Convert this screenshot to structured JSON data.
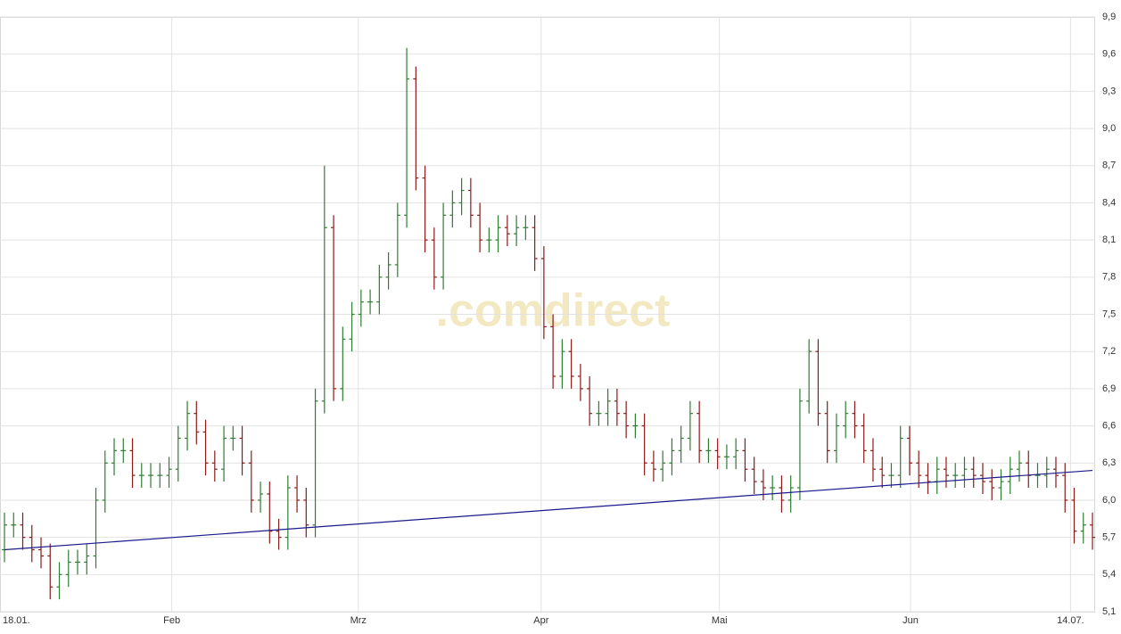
{
  "chart_data": {
    "type": "ohlc",
    "watermark": ".comdirect",
    "open": [
      5.6,
      5.8,
      5.8,
      5.7,
      5.6,
      5.55,
      5.3,
      5.4,
      5.5,
      5.5,
      5.55,
      6.0,
      6.3,
      6.4,
      6.4,
      6.2,
      6.2,
      6.2,
      6.2,
      6.25,
      6.5,
      6.7,
      6.55,
      6.3,
      6.25,
      6.5,
      6.5,
      6.3,
      6.0,
      6.05,
      5.75,
      5.7,
      6.1,
      6.0,
      5.8,
      6.8,
      8.2,
      6.9,
      7.3,
      7.5,
      7.6,
      7.6,
      7.8,
      7.9,
      8.3,
      9.4,
      8.6,
      8.1,
      7.8,
      8.3,
      8.4,
      8.5,
      8.3,
      8.1,
      8.1,
      8.2,
      8.15,
      8.2,
      8.2,
      7.95,
      7.4,
      7.0,
      7.2,
      7.0,
      6.9,
      6.7,
      6.7,
      6.8,
      6.7,
      6.6,
      6.6,
      6.3,
      6.25,
      6.3,
      6.4,
      6.5,
      6.7,
      6.4,
      6.4,
      6.35,
      6.35,
      6.4,
      6.25,
      6.15,
      6.1,
      6.1,
      6.0,
      6.1,
      6.8,
      7.2,
      6.7,
      6.4,
      6.6,
      6.7,
      6.6,
      6.4,
      6.25,
      6.2,
      6.2,
      6.5,
      6.3,
      6.2,
      6.15,
      6.25,
      6.2,
      6.2,
      6.25,
      6.2,
      6.15,
      6.1,
      6.15,
      6.25,
      6.3,
      6.2,
      6.2,
      6.25,
      6.2,
      6.0,
      5.75,
      5.8
    ],
    "high": [
      5.9,
      5.9,
      5.9,
      5.8,
      5.7,
      5.65,
      5.5,
      5.6,
      5.6,
      5.65,
      6.1,
      6.4,
      6.5,
      6.5,
      6.5,
      6.3,
      6.3,
      6.3,
      6.35,
      6.6,
      6.8,
      6.8,
      6.65,
      6.4,
      6.6,
      6.6,
      6.6,
      6.4,
      6.15,
      6.15,
      5.85,
      6.2,
      6.2,
      6.1,
      6.9,
      8.7,
      8.3,
      7.4,
      7.6,
      7.7,
      7.7,
      7.9,
      8.0,
      8.4,
      9.65,
      9.5,
      8.7,
      8.2,
      8.4,
      8.5,
      8.6,
      8.6,
      8.4,
      8.2,
      8.3,
      8.3,
      8.3,
      8.3,
      8.3,
      8.05,
      7.5,
      7.3,
      7.3,
      7.1,
      7.0,
      6.8,
      6.9,
      6.9,
      6.8,
      6.7,
      6.7,
      6.4,
      6.4,
      6.5,
      6.6,
      6.8,
      6.8,
      6.5,
      6.5,
      6.45,
      6.5,
      6.5,
      6.35,
      6.25,
      6.2,
      6.2,
      6.2,
      6.9,
      7.3,
      7.3,
      6.8,
      6.7,
      6.8,
      6.8,
      6.7,
      6.5,
      6.35,
      6.3,
      6.6,
      6.6,
      6.4,
      6.3,
      6.35,
      6.35,
      6.3,
      6.35,
      6.35,
      6.3,
      6.25,
      6.25,
      6.35,
      6.4,
      6.4,
      6.3,
      6.35,
      6.35,
      6.3,
      6.1,
      5.9,
      5.9
    ],
    "low": [
      5.5,
      5.7,
      5.6,
      5.5,
      5.45,
      5.2,
      5.2,
      5.3,
      5.4,
      5.4,
      5.45,
      5.9,
      6.2,
      6.3,
      6.1,
      6.1,
      6.1,
      6.1,
      6.1,
      6.15,
      6.4,
      6.45,
      6.2,
      6.15,
      6.15,
      6.4,
      6.2,
      5.9,
      5.9,
      5.65,
      5.6,
      5.6,
      5.9,
      5.7,
      5.7,
      6.7,
      6.8,
      6.8,
      7.2,
      7.4,
      7.5,
      7.5,
      7.7,
      7.8,
      8.2,
      8.5,
      8.0,
      7.7,
      7.7,
      8.2,
      8.3,
      8.2,
      8.0,
      8.0,
      8.0,
      8.05,
      8.05,
      8.1,
      7.85,
      7.3,
      6.9,
      6.9,
      6.9,
      6.8,
      6.6,
      6.6,
      6.6,
      6.6,
      6.5,
      6.5,
      6.2,
      6.15,
      6.15,
      6.2,
      6.3,
      6.4,
      6.3,
      6.3,
      6.25,
      6.25,
      6.25,
      6.15,
      6.05,
      6.0,
      6.0,
      5.9,
      5.9,
      6.0,
      6.7,
      6.6,
      6.3,
      6.3,
      6.5,
      6.5,
      6.3,
      6.15,
      6.1,
      6.1,
      6.1,
      6.2,
      6.1,
      6.05,
      6.05,
      6.1,
      6.1,
      6.1,
      6.1,
      6.05,
      6.0,
      6.0,
      6.05,
      6.15,
      6.1,
      6.1,
      6.1,
      6.1,
      5.9,
      5.65,
      5.65,
      5.6
    ],
    "close": [
      5.8,
      5.8,
      5.7,
      5.6,
      5.55,
      5.3,
      5.4,
      5.5,
      5.5,
      5.55,
      6.0,
      6.3,
      6.4,
      6.4,
      6.2,
      6.2,
      6.2,
      6.2,
      6.25,
      6.5,
      6.7,
      6.55,
      6.3,
      6.25,
      6.5,
      6.5,
      6.3,
      6.0,
      6.05,
      5.75,
      5.7,
      6.1,
      6.0,
      5.8,
      6.8,
      8.2,
      6.9,
      7.3,
      7.5,
      7.6,
      7.6,
      7.8,
      7.9,
      8.3,
      9.4,
      8.6,
      8.1,
      7.8,
      8.3,
      8.4,
      8.5,
      8.3,
      8.1,
      8.1,
      8.2,
      8.15,
      8.2,
      8.2,
      7.95,
      7.4,
      7.0,
      7.2,
      7.0,
      6.9,
      6.7,
      6.7,
      6.8,
      6.7,
      6.6,
      6.6,
      6.3,
      6.25,
      6.3,
      6.4,
      6.5,
      6.7,
      6.4,
      6.4,
      6.35,
      6.35,
      6.4,
      6.25,
      6.15,
      6.1,
      6.1,
      6.0,
      6.1,
      6.8,
      7.2,
      6.7,
      6.4,
      6.6,
      6.7,
      6.6,
      6.4,
      6.25,
      6.2,
      6.2,
      6.5,
      6.3,
      6.2,
      6.15,
      6.25,
      6.2,
      6.2,
      6.25,
      6.2,
      6.15,
      6.1,
      6.15,
      6.25,
      6.3,
      6.2,
      6.2,
      6.25,
      6.2,
      6.0,
      5.75,
      5.8,
      5.7
    ],
    "up_color": "#2e7d32",
    "down_color": "#8b1a1a",
    "trendline": {
      "x": [
        0,
        119
      ],
      "values": [
        5.6,
        6.24
      ],
      "color": "#1a1a8c"
    },
    "xlim": [
      0,
      119
    ],
    "xticks": [
      {
        "value": 0,
        "label": "18.01."
      },
      {
        "value": 18.3,
        "label": "Feb"
      },
      {
        "value": 38.7,
        "label": "Mrz"
      },
      {
        "value": 58.7,
        "label": "Apr"
      },
      {
        "value": 78.2,
        "label": "Mai"
      },
      {
        "value": 99.1,
        "label": "Jun"
      },
      {
        "value": 116.6,
        "label": "14.07."
      }
    ],
    "ylim": [
      5.1,
      9.9
    ],
    "yticks": [
      {
        "value": 5.1,
        "label": "5,1"
      },
      {
        "value": 5.4,
        "label": "5,4"
      },
      {
        "value": 5.7,
        "label": "5,7"
      },
      {
        "value": 6.0,
        "label": "6,0"
      },
      {
        "value": 6.3,
        "label": "6,3"
      },
      {
        "value": 6.6,
        "label": "6,6"
      },
      {
        "value": 6.9,
        "label": "6,9"
      },
      {
        "value": 7.2,
        "label": "7,2"
      },
      {
        "value": 7.5,
        "label": "7,5"
      },
      {
        "value": 7.8,
        "label": "7,8"
      },
      {
        "value": 8.1,
        "label": "8,1"
      },
      {
        "value": 8.4,
        "label": "8,4"
      },
      {
        "value": 8.7,
        "label": "8,7"
      },
      {
        "value": 9.0,
        "label": "9,0"
      },
      {
        "value": 9.3,
        "label": "9,3"
      },
      {
        "value": 9.6,
        "label": "9,6"
      },
      {
        "value": 9.9,
        "label": "9,9"
      }
    ],
    "grid": true
  }
}
